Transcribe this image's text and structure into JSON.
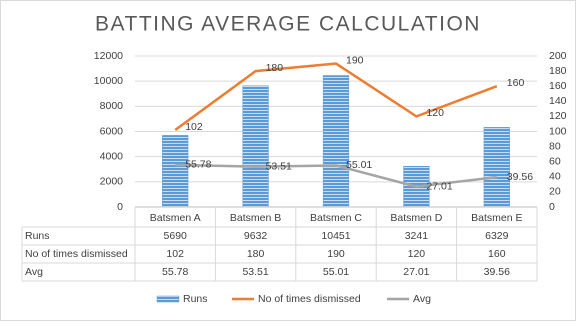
{
  "chart_data": {
    "type": "bar-line",
    "title": "BATTING AVERAGE CALCULATION",
    "categories": [
      "Batsmen A",
      "Batsmen B",
      "Batsmen C",
      "Batsmen D",
      "Batsmen E"
    ],
    "series": [
      {
        "name": "Runs",
        "type": "bar",
        "color": "#5b9bd5",
        "values": [
          5690,
          9632,
          10451,
          3241,
          6329
        ]
      },
      {
        "name": "No of times dismissed",
        "type": "line",
        "axis": "y2",
        "color": "#ed7d31",
        "values": [
          102,
          180,
          190,
          120,
          160
        ]
      },
      {
        "name": "Avg",
        "type": "line",
        "axis": "y2",
        "color": "#a5a5a5",
        "values": [
          55.78,
          53.51,
          55.01,
          27.01,
          39.56
        ]
      }
    ],
    "ylim": [
      0,
      12000
    ],
    "yticks": [
      0,
      2000,
      4000,
      6000,
      8000,
      10000,
      12000
    ],
    "y2lim": [
      0,
      200
    ],
    "y2ticks": [
      0,
      20,
      40,
      60,
      80,
      100,
      120,
      140,
      160,
      180,
      200
    ],
    "grid": true,
    "legend": "bottom",
    "data_table": true
  }
}
